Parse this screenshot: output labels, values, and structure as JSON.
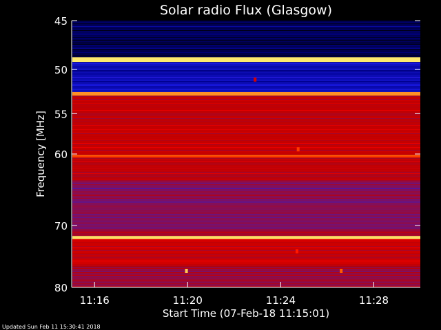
{
  "chart_data": {
    "type": "heatmap",
    "title": "Solar radio Flux (Glasgow)",
    "xlabel": "Start Time (07-Feb-18 11:15:01)",
    "ylabel": "Frequency [MHz]",
    "x_ticks": [
      "11:16",
      "11:20",
      "11:24",
      "11:28"
    ],
    "x_tick_minutes": [
      16,
      20,
      24,
      28
    ],
    "x_range_minutes": [
      15.016,
      30.0
    ],
    "y_ticks": [
      45,
      50,
      55,
      60,
      70,
      80
    ],
    "y_scale": "log",
    "y_range": [
      45,
      80
    ],
    "grid": false,
    "colormap": [
      "#000000",
      "#00008c",
      "#1e1ef0",
      "#7f1060",
      "#c00000",
      "#ff0000",
      "#ff6000",
      "#ffff80"
    ],
    "bands": [
      {
        "from": 45,
        "to": 48.7,
        "level": 0.08
      },
      {
        "from": 48.7,
        "to": 49.2,
        "level": 0.98
      },
      {
        "from": 49.2,
        "to": 52.5,
        "level": 0.2
      },
      {
        "from": 52.5,
        "to": 52.9,
        "level": 0.9
      },
      {
        "from": 52.9,
        "to": 60.1,
        "level": 0.58
      },
      {
        "from": 60.1,
        "to": 60.4,
        "level": 0.8
      },
      {
        "from": 60.4,
        "to": 63.5,
        "level": 0.56
      },
      {
        "from": 63.5,
        "to": 70.5,
        "level": 0.44
      },
      {
        "from": 70.5,
        "to": 71.6,
        "level": 0.5
      },
      {
        "from": 71.6,
        "to": 72.1,
        "level": 0.97
      },
      {
        "from": 72.1,
        "to": 76.5,
        "level": 0.6
      },
      {
        "from": 76.5,
        "to": 80,
        "level": 0.48
      }
    ],
    "hotspots": [
      {
        "minute": 19.95,
        "mhz": 77.2,
        "level": 0.95
      },
      {
        "minute": 24.75,
        "mhz": 59.4,
        "level": 0.8
      },
      {
        "minute": 26.6,
        "mhz": 77.2,
        "level": 0.85
      },
      {
        "minute": 22.9,
        "mhz": 51.1,
        "level": 0.62
      },
      {
        "minute": 24.7,
        "mhz": 74.0,
        "level": 0.75
      }
    ]
  },
  "footer": {
    "updated": "Updated Sun Feb 11 15:30:41 2018"
  }
}
